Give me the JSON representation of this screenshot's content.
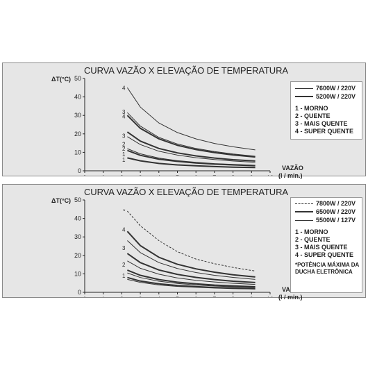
{
  "chart_data": [
    {
      "type": "line",
      "title": "CURVA VAZÃO X ELEVAÇÃO DE TEMPERATURA",
      "ylabel": "ΔT(°C)",
      "xlabel": "VAZÃO",
      "xunit": "(l / min.)",
      "xlim": [
        0,
        10
      ],
      "ylim": [
        0,
        50
      ],
      "xticks": [
        0,
        1,
        2,
        3,
        4,
        5,
        6,
        7,
        8,
        9,
        10
      ],
      "yticks": [
        0,
        10,
        20,
        30,
        40,
        50
      ],
      "legend": {
        "placement": "right",
        "series": [
          {
            "label": "7600W / 220V",
            "style": "thin"
          },
          {
            "label": "5200W / 220V",
            "style": "thick"
          }
        ],
        "levels": [
          "1 - MORNO",
          "2 - QUENTE",
          "3 - MAIS QUENTE",
          "4 - SUPER QUENTE"
        ]
      },
      "series": [
        {
          "group": "7600W / 220V",
          "level": "4",
          "style": "thin",
          "x": [
            2.3,
            3,
            4,
            5,
            6,
            7,
            8,
            9.2
          ],
          "y": [
            45,
            34.5,
            25.9,
            20.7,
            17.3,
            14.8,
            13,
            11.3
          ]
        },
        {
          "group": "7600W / 220V",
          "level": "3",
          "style": "thin",
          "x": [
            2.3,
            3,
            4,
            5,
            6,
            7,
            8,
            9.2
          ],
          "y": [
            31.5,
            24.2,
            18.1,
            14.5,
            12.1,
            10.4,
            9.1,
            7.9
          ]
        },
        {
          "group": "7600W / 220V",
          "level": "2",
          "style": "thin",
          "x": [
            2.3,
            3,
            4,
            5,
            6,
            7,
            8,
            9.2
          ],
          "y": [
            18.5,
            14.2,
            10.6,
            8.5,
            7.1,
            6.1,
            5.3,
            4.6
          ]
        },
        {
          "group": "7600W / 220V",
          "level": "1",
          "style": "thin",
          "x": [
            2.3,
            3,
            4,
            5,
            6,
            7,
            8,
            9.2
          ],
          "y": [
            12,
            9.2,
            6.9,
            5.5,
            4.6,
            3.9,
            3.5,
            3.0
          ]
        },
        {
          "group": "5200W / 220V",
          "level": "4",
          "style": "thick",
          "x": [
            2.3,
            3,
            4,
            5,
            6,
            7,
            8,
            9.2
          ],
          "y": [
            30,
            23,
            17.3,
            13.8,
            11.5,
            9.9,
            8.6,
            7.5
          ]
        },
        {
          "group": "5200W / 220V",
          "level": "3",
          "style": "thick",
          "x": [
            2.3,
            3,
            4,
            5,
            6,
            7,
            8,
            9.2
          ],
          "y": [
            21,
            16.1,
            12.1,
            9.7,
            8.1,
            6.9,
            6.0,
            5.3
          ]
        },
        {
          "group": "5200W / 220V",
          "level": "2",
          "style": "thick",
          "x": [
            2.3,
            3,
            4,
            5,
            6,
            7,
            8,
            9.2
          ],
          "y": [
            11,
            8.4,
            6.3,
            5.1,
            4.2,
            3.6,
            3.2,
            2.8
          ]
        },
        {
          "group": "5200W / 220V",
          "level": "1",
          "style": "thick",
          "x": [
            2.3,
            3,
            4,
            5,
            6,
            7,
            8,
            9.2
          ],
          "y": [
            7,
            5.4,
            4.0,
            3.2,
            2.7,
            2.3,
            2.0,
            1.8
          ]
        }
      ],
      "curve_labels": [
        {
          "text": "4",
          "x": 2.3,
          "y": 45
        },
        {
          "text": "3",
          "x": 2.3,
          "y": 32
        },
        {
          "text": "4",
          "x": 2.3,
          "y": 29.5
        },
        {
          "text": "3",
          "x": 2.3,
          "y": 19
        },
        {
          "text": "2",
          "x": 2.3,
          "y": 14.5
        },
        {
          "text": "2",
          "x": 2.3,
          "y": 12
        },
        {
          "text": "1",
          "x": 2.3,
          "y": 9
        },
        {
          "text": "1",
          "x": 2.3,
          "y": 6
        }
      ]
    },
    {
      "type": "line",
      "title": "CURVA VAZÃO X ELEVAÇÃO DE TEMPERATURA",
      "ylabel": "ΔT(°C)",
      "xlabel": "VAZÃO",
      "xunit": "(l / min.)",
      "xlim": [
        0,
        10
      ],
      "ylim": [
        0,
        50
      ],
      "xticks": [
        0,
        1,
        2,
        3,
        4,
        5,
        6,
        7,
        8,
        9,
        10
      ],
      "yticks": [
        0,
        10,
        20,
        30,
        40,
        50
      ],
      "legend": {
        "placement": "right",
        "series": [
          {
            "label": "7800W / 220V",
            "style": "dashed"
          },
          {
            "label": "6500W / 220V",
            "style": "thick"
          },
          {
            "label": "5500W / 127V",
            "style": "thin"
          }
        ],
        "levels": [
          "1 - MORNO",
          "2 - QUENTE",
          "3 - MAIS QUENTE",
          "4 - SUPER QUENTE"
        ],
        "note": "*POTÊNCIA MÁXIMA DA DUCHA ELETRÔNICA"
      },
      "series": [
        {
          "group": "7800W / 220V",
          "level": "4",
          "style": "dashed",
          "x": [
            2.3,
            3,
            4,
            5,
            6,
            7,
            8,
            9.2
          ],
          "y": [
            44,
            36,
            28,
            22,
            18,
            15.5,
            13.5,
            11.5
          ]
        },
        {
          "group": "6500W / 220V",
          "level": "4",
          "style": "thick",
          "x": [
            2.3,
            3,
            4,
            5,
            6,
            7,
            8,
            9.2
          ],
          "y": [
            33,
            25.3,
            19,
            15.2,
            12.7,
            10.9,
            9.5,
            8.3
          ]
        },
        {
          "group": "6500W / 220V",
          "level": "3",
          "style": "thick",
          "x": [
            2.3,
            3,
            4,
            5,
            6,
            7,
            8,
            9.2
          ],
          "y": [
            21,
            16.1,
            12.1,
            9.7,
            8.1,
            6.9,
            6.0,
            5.3
          ]
        },
        {
          "group": "6500W / 220V",
          "level": "2",
          "style": "thick",
          "x": [
            2.3,
            3,
            4,
            5,
            6,
            7,
            8,
            9.2
          ],
          "y": [
            12,
            9.2,
            6.9,
            5.5,
            4.6,
            3.9,
            3.5,
            3.0
          ]
        },
        {
          "group": "6500W / 220V",
          "level": "1",
          "style": "thick",
          "x": [
            2.3,
            3,
            4,
            5,
            6,
            7,
            8,
            9.2
          ],
          "y": [
            8,
            6.1,
            4.6,
            3.7,
            3.1,
            2.6,
            2.3,
            2.0
          ]
        },
        {
          "group": "5500W / 127V",
          "level": "4",
          "style": "thin",
          "x": [
            2.3,
            3,
            4,
            5,
            6,
            7,
            8,
            9.2
          ],
          "y": [
            28,
            21.5,
            16.1,
            12.9,
            10.7,
            9.2,
            8.1,
            7.0
          ]
        },
        {
          "group": "5500W / 127V",
          "level": "3",
          "style": "thin",
          "x": [
            2.3,
            3,
            4,
            5,
            6,
            7,
            8,
            9.2
          ],
          "y": [
            17,
            13,
            9.8,
            7.8,
            6.5,
            5.6,
            4.9,
            4.3
          ]
        },
        {
          "group": "5500W / 127V",
          "level": "2",
          "style": "thin",
          "x": [
            2.3,
            3,
            4,
            5,
            6,
            7,
            8,
            9.2
          ],
          "y": [
            10.5,
            8.0,
            6.0,
            4.8,
            4.0,
            3.4,
            3.0,
            2.6
          ]
        },
        {
          "group": "5500W / 127V",
          "level": "1",
          "style": "thin",
          "x": [
            2.3,
            3,
            4,
            5,
            6,
            7,
            8,
            9.2
          ],
          "y": [
            7,
            5.4,
            4.0,
            3.2,
            2.7,
            2.3,
            2.0,
            1.8
          ]
        }
      ],
      "curve_labels": [
        {
          "text": "*",
          "x": 2.3,
          "y": 44
        },
        {
          "text": "4",
          "x": 2.3,
          "y": 34
        },
        {
          "text": "3",
          "x": 2.3,
          "y": 24
        },
        {
          "text": "2",
          "x": 2.3,
          "y": 15
        },
        {
          "text": "1",
          "x": 2.3,
          "y": 9
        }
      ]
    }
  ]
}
